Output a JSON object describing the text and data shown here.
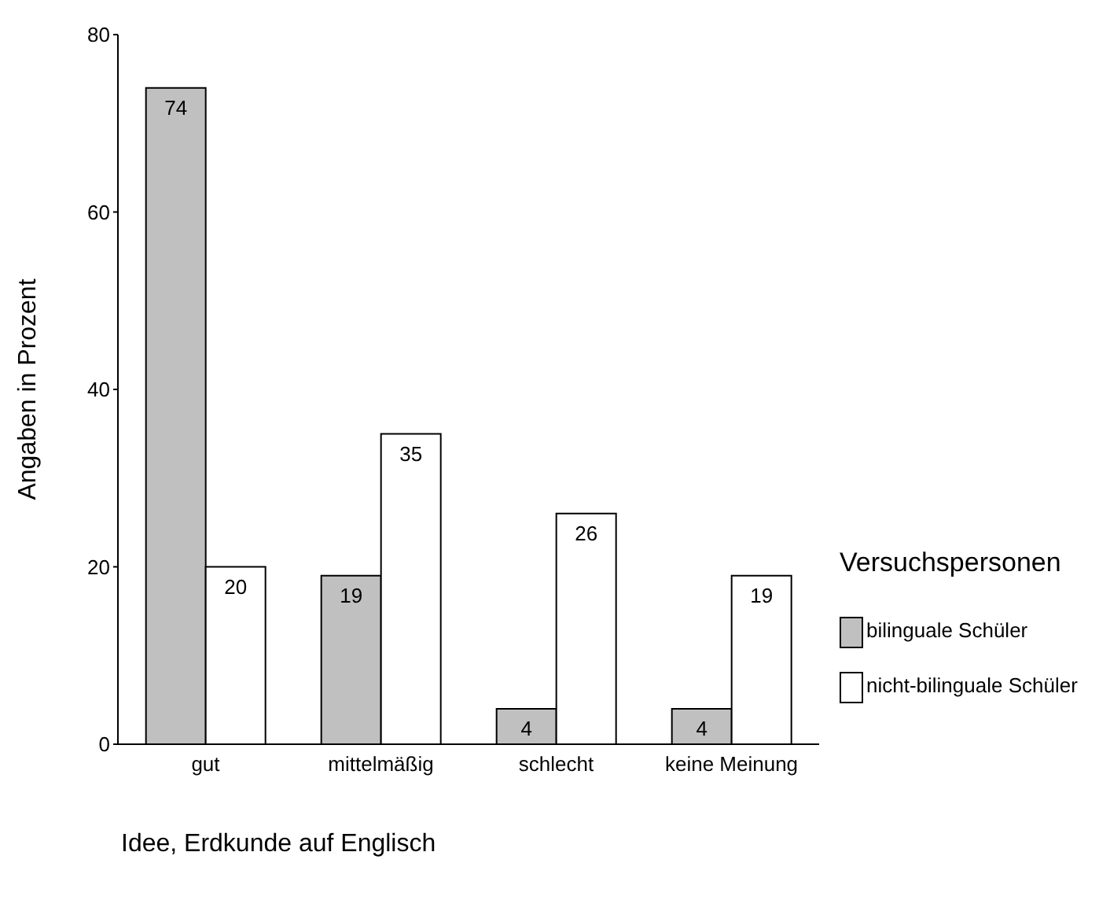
{
  "chart_data": {
    "type": "bar",
    "xlabel": "Idee, Erdkunde auf Englisch",
    "ylabel": "Angaben in Prozent",
    "legend_title": "Versuchspersonen",
    "categories": [
      "gut",
      "mittelmäßig",
      "schlecht",
      "keine Meinung"
    ],
    "series": [
      {
        "name": "bilinguale Schüler",
        "color": "#c0c0c0",
        "values": [
          74,
          19,
          4,
          4
        ]
      },
      {
        "name": "nicht-bilinguale Schüler",
        "color": "#ffffff",
        "values": [
          20,
          35,
          26,
          19
        ]
      }
    ],
    "ylim": [
      0,
      80
    ],
    "yticks": [
      0,
      20,
      40,
      60,
      80
    ],
    "grid": false,
    "legend": "right",
    "data_labels": true
  }
}
